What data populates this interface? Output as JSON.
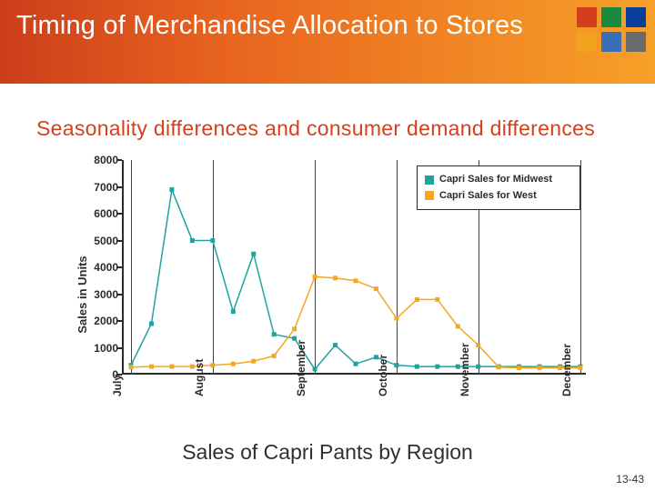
{
  "header": {
    "title": "Timing of Merchandise Allocation to Stores",
    "gradient_from": "#cc3e1a",
    "gradient_mid": "#e8651f",
    "gradient_to": "#f7a028",
    "squares": [
      "#d23d1c",
      "#1c8a3c",
      "#0b3d9b",
      "#f3a21f",
      "#3a6fb6",
      "#6a6a6a"
    ]
  },
  "subhead": "Seasonality differences and consumer demand differences",
  "caption": "Sales of Capri Pants by Region",
  "pagenum": "13-43",
  "chart": {
    "type": "line",
    "y_label": "Sales in Units",
    "ylim": [
      0,
      8000
    ],
    "ytick_step": 1000,
    "x_major": [
      0,
      4,
      9,
      13,
      17,
      22
    ],
    "x_major_labels": [
      "July",
      "August",
      "September",
      "October",
      "November",
      "December"
    ],
    "x_count": 23,
    "background": "#ffffff",
    "axis_color": "#2b2b2b",
    "grid_color": "#444444",
    "legend": {
      "position": "top-right",
      "border_color": "#2b2b2b",
      "items": [
        {
          "label": "Capri Sales for Midwest",
          "color": "#1fa3a0",
          "marker": "square"
        },
        {
          "label": "Capri Sales for West",
          "color": "#f5a623",
          "marker": "square"
        }
      ]
    },
    "series": [
      {
        "name": "midwest",
        "color": "#1fa3a0",
        "marker": "square",
        "marker_size": 5,
        "line_width": 1.5,
        "y": [
          350,
          1900,
          6900,
          5000,
          5000,
          2350,
          4500,
          1500,
          1350,
          200,
          1100,
          400,
          650,
          350,
          300,
          300,
          300,
          300,
          300,
          300,
          300,
          300,
          300
        ]
      },
      {
        "name": "west",
        "color": "#f5a623",
        "marker": "square",
        "marker_size": 5,
        "line_width": 1.5,
        "y": [
          280,
          300,
          300,
          300,
          350,
          400,
          500,
          700,
          1700,
          3650,
          3600,
          3500,
          3200,
          2100,
          2800,
          2800,
          1800,
          1100,
          280,
          250,
          250,
          250,
          250
        ]
      }
    ]
  }
}
